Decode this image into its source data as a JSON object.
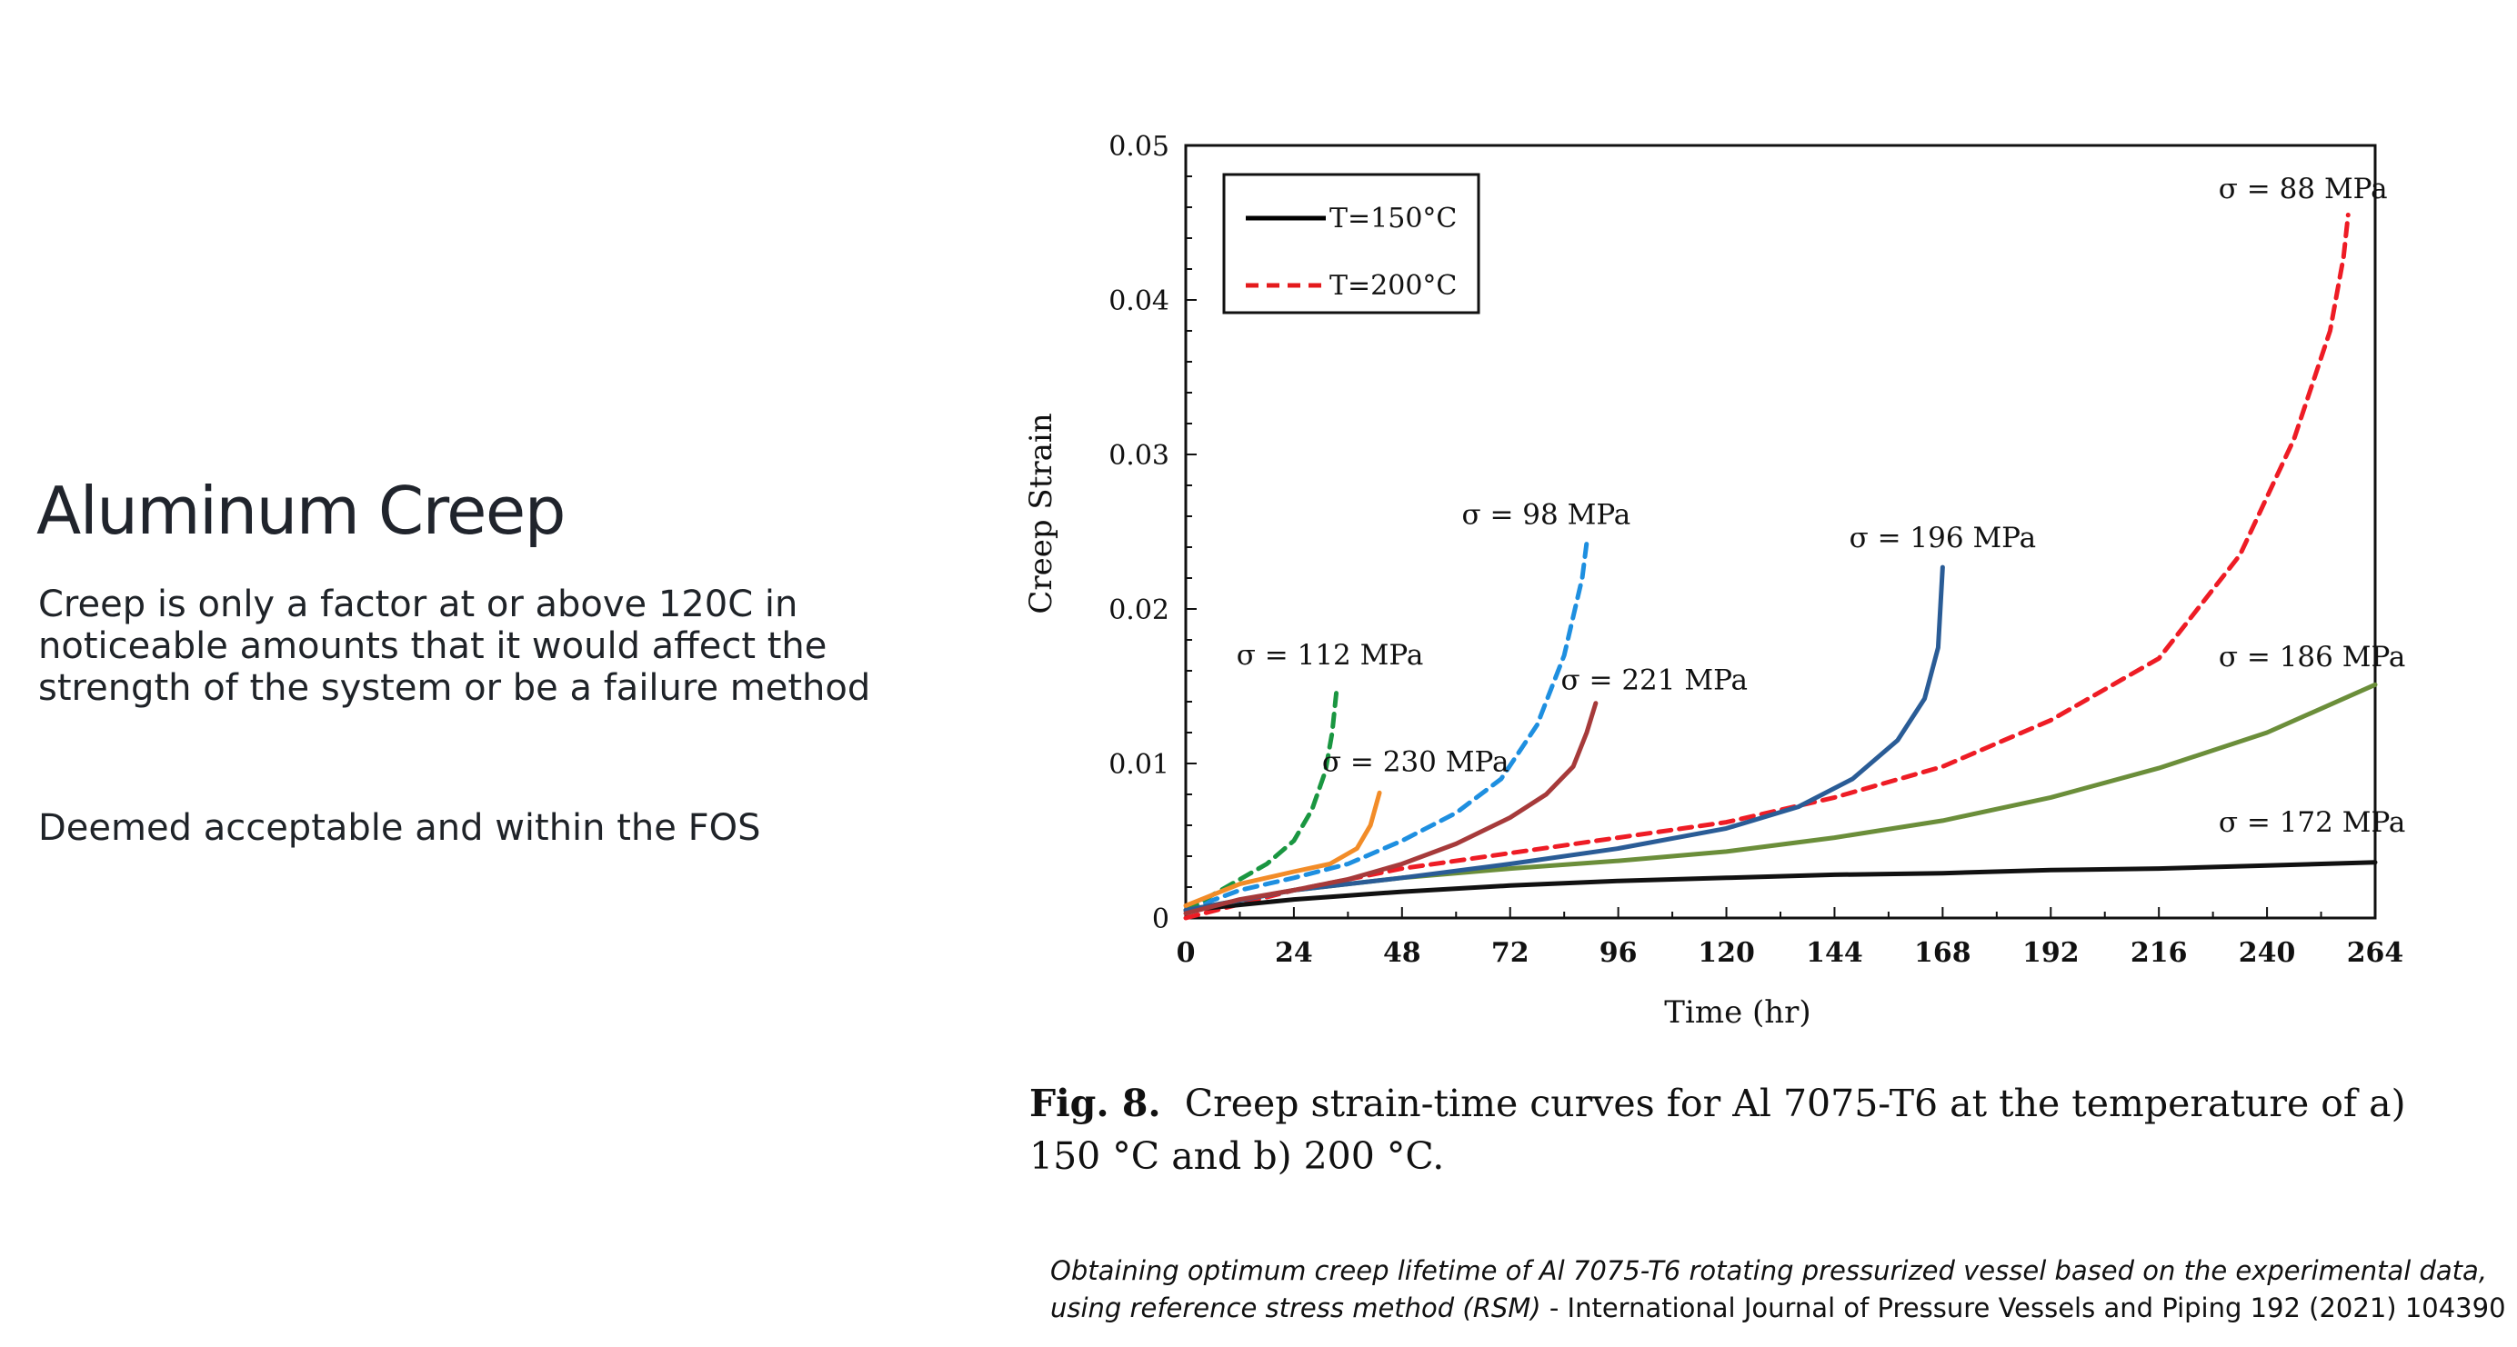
{
  "slide": {
    "title": "Aluminum Creep",
    "body_1": "Creep is only a factor at or above 120C in noticeable amounts that it would affect the strength of the system or be a failure method",
    "body_2": "Deemed acceptable and within the FOS"
  },
  "figure": {
    "caption_label": "Fig. 8.",
    "caption_text": "Creep strain-time curves for Al 7075-T6 at the temperature of a) 150 °C and b) 200 °C.",
    "citation_italic": "Obtaining optimum creep lifetime of Al 7075-T6 rotating pressurized vessel based on the experimental data, using reference stress method (RSM)",
    "citation_rest": " - International Journal of Pressure Vessels and Piping 192 (2021) 104390"
  },
  "colors": {
    "t150": "#000000",
    "t200": "#e41a1c",
    "s88": "#ee1c25",
    "s98": "#1e8fe0",
    "s112": "#1a9641",
    "s172": "#111111",
    "s186": "#6b8e3a",
    "s196": "#2a5c96",
    "s221": "#a63a3a",
    "s230": "#f28c28"
  },
  "chart_data": {
    "type": "line",
    "xlabel": "Time (hr)",
    "ylabel": "Creep  Strain",
    "xlim": [
      0,
      264
    ],
    "ylim": [
      0,
      0.05
    ],
    "xticks": [
      "0",
      "24",
      "48",
      "72",
      "96",
      "120",
      "144",
      "168",
      "192",
      "216",
      "240",
      "264"
    ],
    "yticks": [
      "0",
      "0.01",
      "0.02",
      "0.03",
      "0.04",
      "0.05"
    ],
    "grid": false,
    "legend": {
      "placement": "top-left",
      "entries": [
        {
          "label": "T=150°C",
          "style": "solid",
          "color": "#000000"
        },
        {
          "label": "T=200°C",
          "style": "dashed",
          "color": "#e41a1c"
        }
      ]
    },
    "series": [
      {
        "name": "σ = 88 MPa",
        "style": "dashed",
        "color": "#ee1c25",
        "points": [
          [
            0,
            0
          ],
          [
            24,
            0.0018
          ],
          [
            48,
            0.0032
          ],
          [
            72,
            0.0042
          ],
          [
            96,
            0.0052
          ],
          [
            120,
            0.0062
          ],
          [
            144,
            0.0078
          ],
          [
            168,
            0.0098
          ],
          [
            192,
            0.0128
          ],
          [
            216,
            0.0168
          ],
          [
            234,
            0.0235
          ],
          [
            246,
            0.031
          ],
          [
            254,
            0.038
          ],
          [
            257,
            0.0428
          ],
          [
            258,
            0.0455
          ]
        ]
      },
      {
        "name": "σ = 98 MPa",
        "style": "dashed",
        "color": "#1e8fe0",
        "points": [
          [
            0,
            0.0005
          ],
          [
            12,
            0.0018
          ],
          [
            24,
            0.0026
          ],
          [
            36,
            0.0035
          ],
          [
            48,
            0.005
          ],
          [
            60,
            0.0068
          ],
          [
            70,
            0.009
          ],
          [
            78,
            0.0125
          ],
          [
            84,
            0.017
          ],
          [
            88,
            0.022
          ],
          [
            89,
            0.0243
          ]
        ]
      },
      {
        "name": "σ = 112 MPa",
        "style": "dashed",
        "color": "#1a9641",
        "points": [
          [
            0,
            0.0005
          ],
          [
            6,
            0.0015
          ],
          [
            12,
            0.0025
          ],
          [
            18,
            0.0035
          ],
          [
            24,
            0.005
          ],
          [
            28,
            0.007
          ],
          [
            31,
            0.0095
          ],
          [
            32.5,
            0.012
          ],
          [
            33.5,
            0.0148
          ]
        ]
      },
      {
        "name": "σ = 172 MPa",
        "style": "solid",
        "color": "#111111",
        "points": [
          [
            0,
            0.0005
          ],
          [
            24,
            0.0012
          ],
          [
            48,
            0.0017
          ],
          [
            72,
            0.0021
          ],
          [
            96,
            0.0024
          ],
          [
            120,
            0.0026
          ],
          [
            144,
            0.0028
          ],
          [
            168,
            0.0029
          ],
          [
            192,
            0.0031
          ],
          [
            216,
            0.0032
          ],
          [
            240,
            0.0034
          ],
          [
            264,
            0.0036
          ]
        ]
      },
      {
        "name": "σ = 186 MPa",
        "style": "solid",
        "color": "#6b8e3a",
        "points": [
          [
            0,
            0.0005
          ],
          [
            24,
            0.0018
          ],
          [
            48,
            0.0026
          ],
          [
            72,
            0.0032
          ],
          [
            96,
            0.0037
          ],
          [
            120,
            0.0043
          ],
          [
            144,
            0.0052
          ],
          [
            168,
            0.0063
          ],
          [
            192,
            0.0078
          ],
          [
            216,
            0.0097
          ],
          [
            240,
            0.012
          ],
          [
            264,
            0.0151
          ]
        ]
      },
      {
        "name": "σ = 196 MPa",
        "style": "solid",
        "color": "#2a5c96",
        "points": [
          [
            0,
            0.0005
          ],
          [
            24,
            0.0018
          ],
          [
            48,
            0.0026
          ],
          [
            72,
            0.0035
          ],
          [
            96,
            0.0045
          ],
          [
            120,
            0.0058
          ],
          [
            136,
            0.0072
          ],
          [
            148,
            0.009
          ],
          [
            158,
            0.0115
          ],
          [
            164,
            0.0142
          ],
          [
            167,
            0.0175
          ],
          [
            168,
            0.0227
          ]
        ]
      },
      {
        "name": "σ = 221 MPa",
        "style": "solid",
        "color": "#a63a3a",
        "points": [
          [
            0,
            0.0003
          ],
          [
            12,
            0.0012
          ],
          [
            24,
            0.0018
          ],
          [
            36,
            0.0025
          ],
          [
            48,
            0.0035
          ],
          [
            60,
            0.0048
          ],
          [
            72,
            0.0065
          ],
          [
            80,
            0.008
          ],
          [
            86,
            0.0098
          ],
          [
            89,
            0.012
          ],
          [
            91,
            0.0139
          ]
        ]
      },
      {
        "name": "σ = 230 MPa",
        "style": "solid",
        "color": "#f28c28",
        "points": [
          [
            0,
            0.0008
          ],
          [
            12,
            0.0022
          ],
          [
            24,
            0.003
          ],
          [
            32,
            0.0035
          ],
          [
            38,
            0.0045
          ],
          [
            41,
            0.006
          ],
          [
            43,
            0.0081
          ]
        ]
      }
    ],
    "annotations": [
      {
        "text": "σ = 88 MPa",
        "x": 248,
        "y": 0.0466
      },
      {
        "text": "σ = 98 MPa",
        "x": 80,
        "y": 0.0255
      },
      {
        "text": "σ = 112 MPa",
        "x": 32,
        "y": 0.0164
      },
      {
        "text": "σ = 230 MPa",
        "x": 51,
        "y": 0.0095
      },
      {
        "text": "σ = 221 MPa",
        "x": 104,
        "y": 0.0148
      },
      {
        "text": "σ = 196 MPa",
        "x": 168,
        "y": 0.024
      },
      {
        "text": "σ = 186 MPa",
        "x": 250,
        "y": 0.0163
      },
      {
        "text": "σ = 172 MPa",
        "x": 250,
        "y": 0.0056
      }
    ]
  }
}
